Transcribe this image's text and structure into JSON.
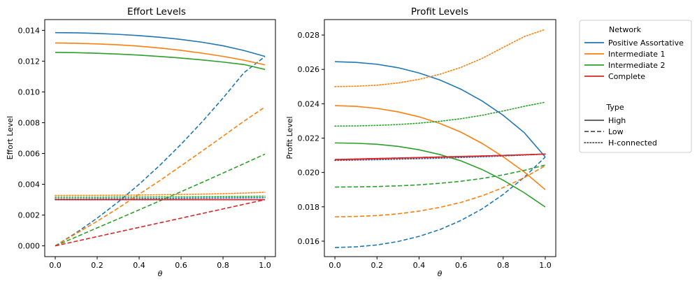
{
  "chart_data": [
    {
      "type": "line",
      "title": "Effort Levels",
      "xlabel": "θ",
      "ylabel": "Effort Level",
      "xlim": [
        -0.05,
        1.05
      ],
      "ylim": [
        -0.0007,
        0.0147
      ],
      "xticks": [
        0.0,
        0.2,
        0.4,
        0.6,
        0.8,
        1.0
      ],
      "xtick_labels": [
        "0.0",
        "0.2",
        "0.4",
        "0.6",
        "0.8",
        "1.0"
      ],
      "yticks": [
        0.0,
        0.002,
        0.004,
        0.006,
        0.008,
        0.01,
        0.012,
        0.014
      ],
      "ytick_labels": [
        "0.000",
        "0.002",
        "0.004",
        "0.006",
        "0.008",
        "0.010",
        "0.012",
        "0.014"
      ],
      "x": [
        0.0,
        0.1,
        0.2,
        0.3,
        0.4,
        0.5,
        0.6,
        0.7,
        0.8,
        0.9,
        1.0
      ],
      "series": [
        {
          "name": "Positive Assortative",
          "type": "High",
          "color": "#1f77b4",
          "values": [
            0.01385,
            0.01384,
            0.0138,
            0.01374,
            0.01366,
            0.01355,
            0.01341,
            0.01323,
            0.013,
            0.01269,
            0.01231
          ]
        },
        {
          "name": "Positive Assortative",
          "type": "Low",
          "color": "#1f77b4",
          "values": [
            0.0,
            0.00085,
            0.0018,
            0.00285,
            0.004,
            0.00525,
            0.0066,
            0.00805,
            0.0096,
            0.01125,
            0.0123
          ]
        },
        {
          "name": "Positive Assortative",
          "type": "H-connected",
          "color": "#1f77b4",
          "values": [
            0.00305,
            0.00305,
            0.00306,
            0.00306,
            0.00307,
            0.00308,
            0.00309,
            0.0031,
            0.00311,
            0.00312,
            0.00313
          ]
        },
        {
          "name": "Intermediate 1",
          "type": "High",
          "color": "#ff7f0e",
          "values": [
            0.01318,
            0.01316,
            0.01312,
            0.01306,
            0.01297,
            0.01285,
            0.0127,
            0.01252,
            0.01231,
            0.01206,
            0.01176
          ]
        },
        {
          "name": "Intermediate 1",
          "type": "Low",
          "color": "#ff7f0e",
          "values": [
            0.0,
            0.0008,
            0.0016,
            0.00245,
            0.00335,
            0.00425,
            0.0052,
            0.00615,
            0.00712,
            0.0081,
            0.00902
          ]
        },
        {
          "name": "Intermediate 1",
          "type": "H-connected",
          "color": "#ff7f0e",
          "values": [
            0.00327,
            0.00328,
            0.00328,
            0.00329,
            0.0033,
            0.00332,
            0.00334,
            0.00336,
            0.00339,
            0.00343,
            0.00348
          ]
        },
        {
          "name": "Intermediate 2",
          "type": "High",
          "color": "#2ca02c",
          "values": [
            0.01257,
            0.01255,
            0.01251,
            0.01246,
            0.01239,
            0.0123,
            0.0122,
            0.01208,
            0.01194,
            0.01178,
            0.01146
          ]
        },
        {
          "name": "Intermediate 2",
          "type": "Low",
          "color": "#2ca02c",
          "values": [
            0.0,
            0.00058,
            0.00117,
            0.00175,
            0.00234,
            0.00293,
            0.00352,
            0.00412,
            0.00473,
            0.00534,
            0.00596
          ]
        },
        {
          "name": "Intermediate 2",
          "type": "H-connected",
          "color": "#2ca02c",
          "values": [
            0.00316,
            0.00316,
            0.00316,
            0.00317,
            0.00317,
            0.00318,
            0.00318,
            0.00319,
            0.0032,
            0.00321,
            0.00323
          ]
        },
        {
          "name": "Complete",
          "type": "High",
          "color": "#d62728",
          "values": [
            0.003,
            0.003,
            0.003,
            0.003,
            0.003,
            0.003,
            0.003,
            0.003,
            0.003,
            0.003,
            0.003
          ]
        },
        {
          "name": "Complete",
          "type": "Low",
          "color": "#d62728",
          "values": [
            0.0,
            0.0003,
            0.0006,
            0.0009,
            0.0012,
            0.0015,
            0.0018,
            0.0021,
            0.0024,
            0.0027,
            0.003
          ]
        },
        {
          "name": "Complete",
          "type": "H-connected",
          "color": "#d62728",
          "values": [
            0.003,
            0.003,
            0.003,
            0.003,
            0.003,
            0.003,
            0.003,
            0.003,
            0.003,
            0.003,
            0.003
          ]
        }
      ]
    },
    {
      "type": "line",
      "title": "Profit Levels",
      "xlabel": "θ",
      "ylabel": "Profit Level",
      "xlim": [
        -0.05,
        1.05
      ],
      "ylim": [
        0.0151,
        0.0289
      ],
      "xticks": [
        0.0,
        0.2,
        0.4,
        0.6,
        0.8,
        1.0
      ],
      "xtick_labels": [
        "0.0",
        "0.2",
        "0.4",
        "0.6",
        "0.8",
        "1.0"
      ],
      "yticks": [
        0.016,
        0.018,
        0.02,
        0.022,
        0.024,
        0.026,
        0.028
      ],
      "ytick_labels": [
        "0.016",
        "0.018",
        "0.020",
        "0.022",
        "0.024",
        "0.026",
        "0.028"
      ],
      "x": [
        0.0,
        0.1,
        0.2,
        0.3,
        0.4,
        0.5,
        0.6,
        0.7,
        0.8,
        0.9,
        1.0
      ],
      "series": [
        {
          "name": "Positive Assortative",
          "type": "High",
          "color": "#1f77b4",
          "values": [
            0.02645,
            0.02641,
            0.0263,
            0.0261,
            0.02579,
            0.02538,
            0.02484,
            0.02416,
            0.02333,
            0.02232,
            0.0209
          ]
        },
        {
          "name": "Positive Assortative",
          "type": "Low",
          "color": "#1f77b4",
          "values": [
            0.01563,
            0.01567,
            0.01578,
            0.01598,
            0.01628,
            0.01668,
            0.01721,
            0.01788,
            0.01872,
            0.01972,
            0.0209
          ]
        },
        {
          "name": "Positive Assortative",
          "type": "H-connected",
          "color": "#1f77b4",
          "values": [
            0.0207,
            0.02072,
            0.02074,
            0.02077,
            0.0208,
            0.02083,
            0.02087,
            0.02091,
            0.02096,
            0.02101,
            0.02107
          ]
        },
        {
          "name": "Intermediate 1",
          "type": "High",
          "color": "#ff7f0e",
          "values": [
            0.02389,
            0.02385,
            0.02373,
            0.02353,
            0.02324,
            0.02285,
            0.02234,
            0.02169,
            0.02091,
            0.02003,
            0.019
          ]
        },
        {
          "name": "Intermediate 1",
          "type": "Low",
          "color": "#ff7f0e",
          "values": [
            0.01742,
            0.01744,
            0.01749,
            0.01759,
            0.01775,
            0.01797,
            0.01826,
            0.01864,
            0.01912,
            0.0197,
            0.02039
          ]
        },
        {
          "name": "Intermediate 1",
          "type": "H-connected",
          "color": "#ff7f0e",
          "values": [
            0.025,
            0.02502,
            0.02508,
            0.02521,
            0.02542,
            0.02572,
            0.02612,
            0.02664,
            0.02728,
            0.02791,
            0.02833
          ]
        },
        {
          "name": "Intermediate 2",
          "type": "High",
          "color": "#2ca02c",
          "values": [
            0.02172,
            0.0217,
            0.02164,
            0.02152,
            0.02132,
            0.02104,
            0.02067,
            0.02017,
            0.01955,
            0.01882,
            0.01799
          ]
        },
        {
          "name": "Intermediate 2",
          "type": "Low",
          "color": "#2ca02c",
          "values": [
            0.01915,
            0.01916,
            0.01918,
            0.01922,
            0.01928,
            0.01937,
            0.01949,
            0.01965,
            0.01986,
            0.02012,
            0.02043
          ]
        },
        {
          "name": "Intermediate 2",
          "type": "H-connected",
          "color": "#2ca02c",
          "values": [
            0.0227,
            0.02271,
            0.02274,
            0.02279,
            0.02287,
            0.02298,
            0.02313,
            0.02333,
            0.02358,
            0.02385,
            0.02409
          ]
        },
        {
          "name": "Complete",
          "type": "High",
          "color": "#d62728",
          "values": [
            0.02075,
            0.02078,
            0.02081,
            0.02084,
            0.02087,
            0.0209,
            0.02093,
            0.02096,
            0.02099,
            0.02103,
            0.02107
          ]
        },
        {
          "name": "Complete",
          "type": "Low",
          "color": "#d62728",
          "values": [
            0.02075,
            0.02078,
            0.02081,
            0.02084,
            0.02087,
            0.0209,
            0.02093,
            0.02096,
            0.02099,
            0.02103,
            0.02107
          ]
        },
        {
          "name": "Complete",
          "type": "H-connected",
          "color": "#d62728",
          "values": [
            0.02072,
            0.02075,
            0.02078,
            0.02081,
            0.02084,
            0.02088,
            0.02091,
            0.02095,
            0.02099,
            0.02103,
            0.02107
          ]
        }
      ]
    }
  ],
  "legend": {
    "network_title": "Network",
    "networks": [
      {
        "label": "Positive Assortative",
        "color": "#1f77b4"
      },
      {
        "label": "Intermediate 1",
        "color": "#ff7f0e"
      },
      {
        "label": "Intermediate 2",
        "color": "#2ca02c"
      },
      {
        "label": "Complete",
        "color": "#d62728"
      }
    ],
    "type_title": "Type",
    "types": [
      {
        "label": "High",
        "dash": "solid"
      },
      {
        "label": "Low",
        "dash": "dashed"
      },
      {
        "label": "H-connected",
        "dash": "dotted"
      }
    ],
    "placement": "right, outside axes"
  }
}
